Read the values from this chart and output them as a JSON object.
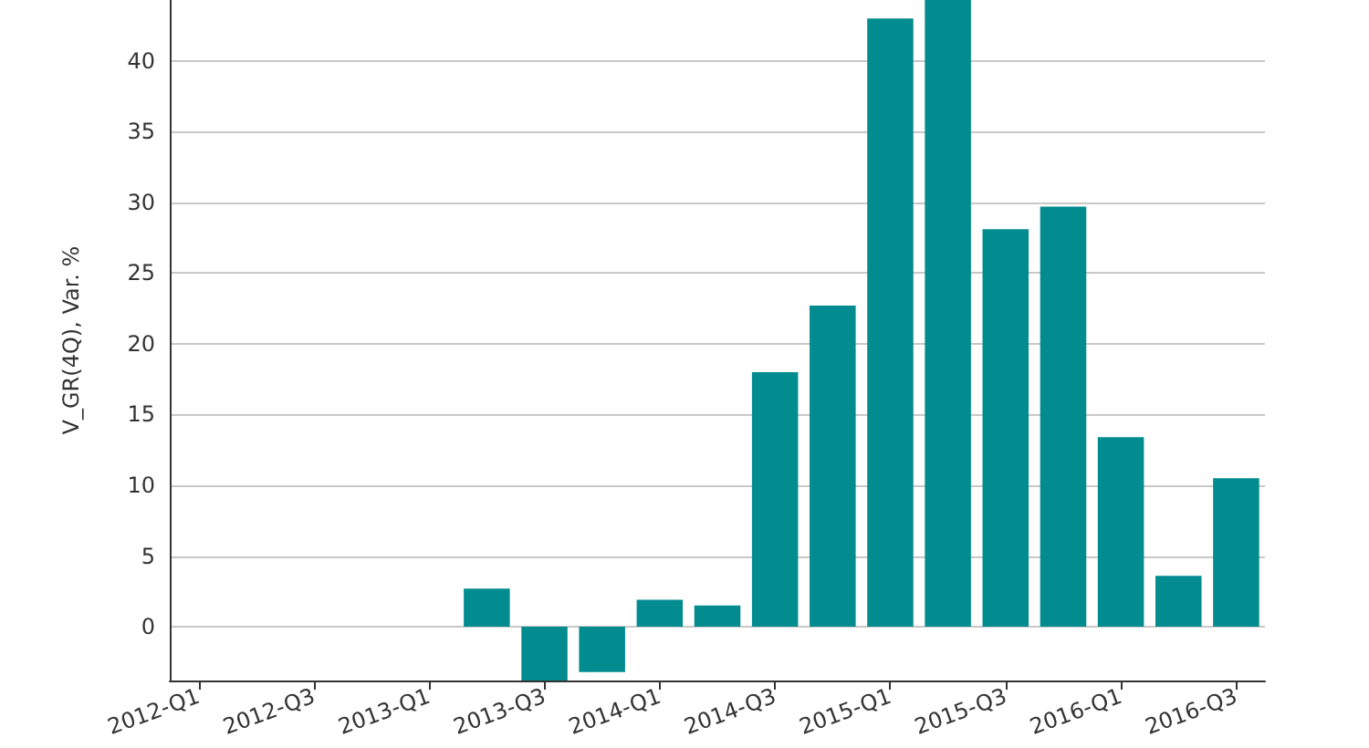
{
  "chart_data": {
    "type": "bar",
    "ylabel": "V_GR(4Q), Var. %",
    "categories": [
      "2012-Q1",
      null,
      "2012-Q3",
      null,
      "2013-Q1",
      null,
      "2013-Q3",
      null,
      "2014-Q1",
      null,
      "2014-Q3",
      null,
      "2015-Q1",
      null,
      "2015-Q3",
      null,
      "2016-Q1",
      null,
      "2016-Q3"
    ],
    "values": [
      null,
      null,
      null,
      null,
      null,
      2.7,
      -3.8,
      -3.2,
      1.9,
      1.5,
      18,
      22.7,
      43,
      44.3,
      28.1,
      29.7,
      13.4,
      3.6,
      10.5
    ],
    "color": "#038c90",
    "ylim": [
      -3.8,
      44.3
    ],
    "yticks": [
      0,
      5,
      10,
      15,
      20,
      25,
      30,
      35,
      40
    ],
    "grid": "y"
  }
}
